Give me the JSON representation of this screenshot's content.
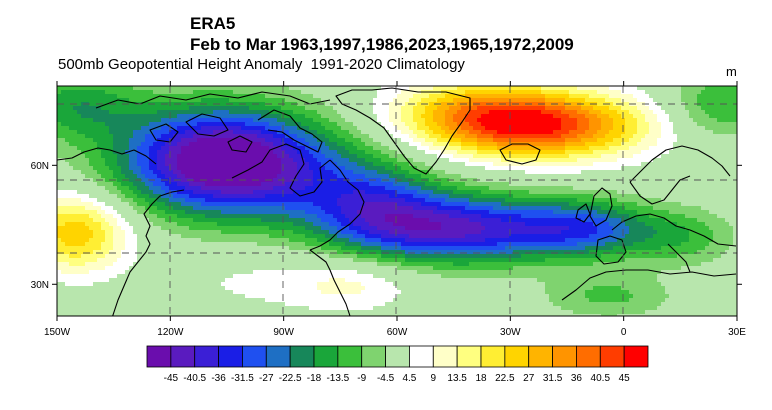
{
  "titles": {
    "line1": "ERA5",
    "line2": "Feb to Mar 1963,1997,1986,2023,1965,1972,2009",
    "line3": "500mb Geopotential Height Anomaly  1991-2020 Climatology",
    "unit": "m"
  },
  "map": {
    "lon_range": [
      -150,
      30
    ],
    "lat_range": [
      22,
      80
    ],
    "lon_ticks": [
      {
        "lon": -150,
        "label": "150W"
      },
      {
        "lon": -120,
        "label": "120W"
      },
      {
        "lon": -90,
        "label": "90W"
      },
      {
        "lon": -60,
        "label": "60W"
      },
      {
        "lon": -30,
        "label": "30W"
      },
      {
        "lon": 0,
        "label": "0"
      },
      {
        "lon": 30,
        "label": "30E"
      }
    ],
    "lat_ticks": [
      {
        "lat": 30,
        "label": "30N"
      },
      {
        "lat": 60,
        "label": "60N"
      }
    ],
    "anomaly_centers": [
      {
        "lon": -108,
        "lat": 62,
        "amp": -45,
        "slon": 18,
        "slat": 9
      },
      {
        "lon": -90,
        "lat": 57,
        "amp": -18,
        "slon": 22,
        "slat": 9
      },
      {
        "lon": -44,
        "lat": 44,
        "amp": -40,
        "slon": 20,
        "slat": 6
      },
      {
        "lon": -10,
        "lat": 44,
        "amp": -24,
        "slon": 12,
        "slat": 5
      },
      {
        "lon": -66,
        "lat": 50,
        "amp": -20,
        "slon": 12,
        "slat": 7
      },
      {
        "lon": 15,
        "lat": 42,
        "amp": -12,
        "slon": 10,
        "slat": 5
      },
      {
        "lon": -22,
        "lat": 70,
        "amp": 42,
        "slon": 20,
        "slat": 6
      },
      {
        "lon": -40,
        "lat": 74,
        "amp": 18,
        "slon": 16,
        "slat": 6
      },
      {
        "lon": -145,
        "lat": 43,
        "amp": 26,
        "slon": 10,
        "slat": 7
      },
      {
        "lon": -72,
        "lat": 30,
        "amp": 10,
        "slon": 12,
        "slat": 5
      },
      {
        "lon": -4,
        "lat": 27,
        "amp": -10,
        "slon": 12,
        "slat": 4
      },
      {
        "lon": -100,
        "lat": 31,
        "amp": 5,
        "slon": 16,
        "slat": 6
      },
      {
        "lon": -145,
        "lat": 75,
        "amp": -16,
        "slon": 12,
        "slat": 6
      },
      {
        "lon": 25,
        "lat": 75,
        "amp": -14,
        "slon": 10,
        "slat": 6
      }
    ]
  },
  "colorbar": {
    "colors": [
      "#6a0dad",
      "#5a1bbf",
      "#3b1fd6",
      "#1a1ee6",
      "#1f50f0",
      "#1e6fc4",
      "#17875a",
      "#1aa63a",
      "#3bbf3b",
      "#7fd36f",
      "#b8e6ad",
      "#ffffff",
      "#ffffc8",
      "#ffff80",
      "#ffee33",
      "#ffd400",
      "#ffb400",
      "#ff9400",
      "#ff6d00",
      "#ff3d00",
      "#ff0000"
    ],
    "labels": [
      "-45",
      "-40.5",
      "-36",
      "-31.5",
      "-27",
      "-22.5",
      "-18",
      "-13.5",
      "-9",
      "-4.5",
      "4.5",
      "9",
      "13.5",
      "18",
      "22.5",
      "27",
      "31.5",
      "36",
      "40.5",
      "45"
    ]
  }
}
